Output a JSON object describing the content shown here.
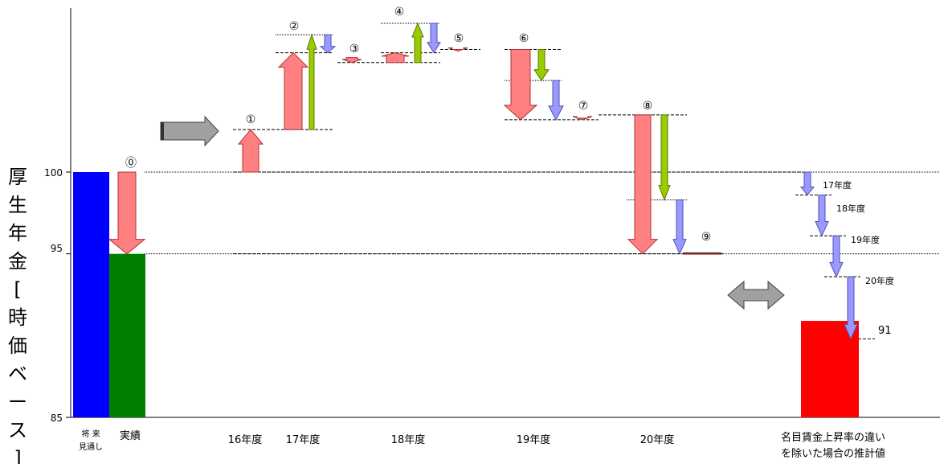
{
  "chart_data": {
    "type": "waterfall",
    "ylabel": "厚生年金[時価ベース]",
    "ylim": [
      85,
      100
    ],
    "yticks": [
      85,
      95,
      100
    ],
    "gridlines_at": [
      95,
      100
    ],
    "start_bar": {
      "label_line1": "将 来",
      "label_line2": "見通し",
      "base": 85,
      "top": 100,
      "color": "#0000ff"
    },
    "actual_bar": {
      "label": "実績",
      "base": 85,
      "top": 95,
      "color": "#008000"
    },
    "markers": [
      {
        "label": "⓪",
        "value": 100
      },
      {
        "label": "①",
        "value": 102.6
      },
      {
        "label": "②",
        "value": 107.3
      },
      {
        "label": "③",
        "value": 106.9
      },
      {
        "label": "④",
        "value": 107.3
      },
      {
        "label": "⑤",
        "value": 107.5
      },
      {
        "label": "⑥",
        "value": 107.5
      },
      {
        "label": "⑦",
        "value": 103.2
      },
      {
        "label": "⑧",
        "value": 103.2
      },
      {
        "label": "⑨",
        "value": 95.0
      }
    ],
    "steps": [
      {
        "marker": "⓪",
        "from": 100,
        "to": 95,
        "kind": "pink"
      },
      {
        "marker": "①",
        "from": 100,
        "to": 102.6,
        "kind": "pink"
      },
      {
        "marker": "②",
        "from": 102.6,
        "to": 107.3,
        "kind": "pink"
      },
      {
        "marker": "②",
        "from": 102.6,
        "to": 108.4,
        "kind": "green"
      },
      {
        "marker": "②",
        "from": 108.4,
        "to": 107.3,
        "kind": "purple"
      },
      {
        "marker": "③",
        "from": 107.0,
        "to": 106.7,
        "kind": "pink"
      },
      {
        "marker": "④",
        "from": 106.7,
        "to": 107.3,
        "kind": "pink"
      },
      {
        "marker": "④",
        "from": 106.7,
        "to": 109.1,
        "kind": "green"
      },
      {
        "marker": "④",
        "from": 109.1,
        "to": 107.3,
        "kind": "purple"
      },
      {
        "marker": "⑤",
        "from": 107.5,
        "to": 107.4,
        "kind": "pink"
      },
      {
        "marker": "⑥",
        "from": 107.5,
        "to": 103.2,
        "kind": "pink"
      },
      {
        "marker": "⑥",
        "from": 107.5,
        "to": 105.6,
        "kind": "green"
      },
      {
        "marker": "⑥",
        "from": 105.6,
        "to": 103.2,
        "kind": "purple"
      },
      {
        "marker": "⑦",
        "from": 103.3,
        "to": 103.2,
        "kind": "pink"
      },
      {
        "marker": "⑧",
        "from": 103.5,
        "to": 95.0,
        "kind": "pink"
      },
      {
        "marker": "⑧",
        "from": 103.5,
        "to": 98.3,
        "kind": "green"
      },
      {
        "marker": "⑧",
        "from": 98.3,
        "to": 95.0,
        "kind": "purple"
      }
    ],
    "group_labels": [
      "16年度",
      "17年度",
      "18年度",
      "19年度",
      "20年度"
    ],
    "nominal_wage": {
      "title_line1": "名目賃金上昇率の違い",
      "title_line2": "を除いた場合の推計値",
      "steps": [
        {
          "label": "17年度",
          "from": 100.0,
          "to": 98.6
        },
        {
          "label": "18年度",
          "from": 98.6,
          "to": 96.1
        },
        {
          "label": "19年度",
          "from": 96.1,
          "to": 93.6
        },
        {
          "label": "20年度",
          "from": 93.6,
          "to": 89.8
        }
      ],
      "result_bar": {
        "value": 91,
        "base": 85,
        "top": 90.9,
        "color": "#ff0000"
      }
    },
    "colors": {
      "pink": "#ff8080",
      "pink_stroke": "#b03030",
      "green": "#99cc00",
      "purple": "#9999ff",
      "gray": "#a0a0a0"
    }
  }
}
